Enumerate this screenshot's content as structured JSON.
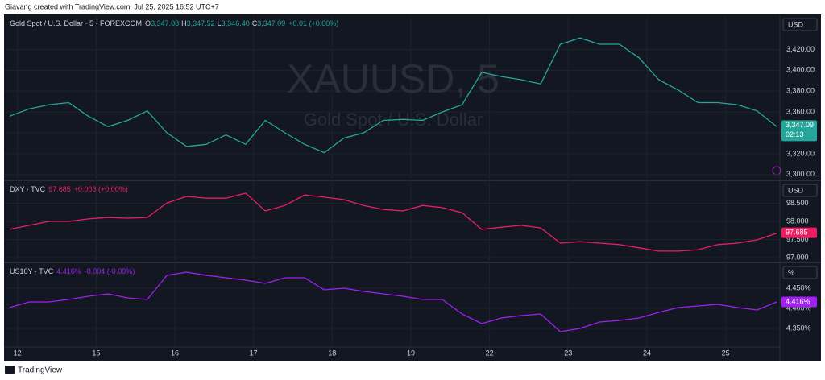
{
  "header": {
    "credit": "Giavang created with TradingView.com, Jul 25, 2025 16:52 UTC+7"
  },
  "footer": {
    "brand": "TradingView"
  },
  "chart_data": [
    {
      "type": "line",
      "unit": "USD",
      "watermark": [
        "XAUUSD, 5",
        "Gold Spot / U.S. Dollar"
      ],
      "ohlc": [
        [
          "O",
          "3,347.08"
        ],
        [
          "H",
          "3,347.52"
        ],
        [
          "L",
          "3,346.40"
        ],
        [
          "C",
          "3,347.09"
        ]
      ],
      "change": "+0.01 (+0.00%)",
      "countdown": "02:13",
      "x": [
        -0.1,
        0.15,
        0.4,
        0.65,
        0.9,
        1.15,
        1.4,
        1.65,
        1.9,
        2.15,
        2.4,
        2.65,
        2.9,
        3.15,
        3.4,
        3.65,
        3.9,
        4.15,
        4.4,
        4.65,
        4.9,
        5.15,
        5.4,
        5.65,
        5.9,
        6.15,
        6.4,
        6.65,
        6.9,
        7.15,
        7.4,
        7.65,
        7.9,
        8.15,
        8.4,
        8.65,
        8.9,
        9.15,
        9.4,
        9.65
      ],
      "series": [
        {
          "name": "Gold Spot / U.S. Dollar · 5 · FOREXCOM",
          "color": "#26a69a",
          "values": [
            3356,
            3363,
            3367,
            3369,
            3356,
            3346,
            3352,
            3361,
            3340,
            3327,
            3329,
            3338,
            3329,
            3352,
            3340,
            3329,
            3321,
            3335,
            3340,
            3352,
            3353,
            3352,
            3360,
            3367,
            3398,
            3394,
            3391,
            3387,
            3425,
            3431,
            3425,
            3425,
            3412,
            3391,
            3381,
            3369,
            3369,
            3367,
            3361,
            3346
          ]
        }
      ],
      "last": {
        "value": 3347.09,
        "label": "3,347.09"
      },
      "xlim": [
        -0.14,
        9.69
      ],
      "ylim": [
        3296,
        3452
      ],
      "yticks": [
        {
          "value": 3300,
          "label": "3,300.00"
        },
        {
          "value": 3320,
          "label": "3,320.00"
        },
        {
          "value": 3340,
          "label": "3,340.00"
        },
        {
          "value": 3360,
          "label": "3,360.00"
        },
        {
          "value": 3380,
          "label": "3,380.00"
        },
        {
          "value": 3400,
          "label": "3,400.00"
        },
        {
          "value": 3420,
          "label": "3,420.00"
        }
      ],
      "grid": true
    },
    {
      "type": "line",
      "unit": "USD",
      "quote": "97.685",
      "change": "+0.003 (+0.00%)",
      "x": [
        -0.1,
        0.15,
        0.4,
        0.65,
        0.9,
        1.15,
        1.4,
        1.65,
        1.9,
        2.15,
        2.4,
        2.65,
        2.9,
        3.15,
        3.4,
        3.65,
        3.9,
        4.15,
        4.4,
        4.65,
        4.9,
        5.15,
        5.4,
        5.65,
        5.9,
        6.15,
        6.4,
        6.65,
        6.9,
        7.15,
        7.4,
        7.65,
        7.9,
        8.15,
        8.4,
        8.65,
        8.9,
        9.15,
        9.4,
        9.65
      ],
      "series": [
        {
          "name": "DXY · TVC",
          "color": "#e91e63",
          "values": [
            97.78,
            97.89,
            98.0,
            98.0,
            98.07,
            98.11,
            98.09,
            98.11,
            98.51,
            98.69,
            98.64,
            98.64,
            98.78,
            98.29,
            98.44,
            98.73,
            98.67,
            98.6,
            98.44,
            98.33,
            98.29,
            98.44,
            98.38,
            98.24,
            97.78,
            97.84,
            97.89,
            97.82,
            97.4,
            97.44,
            97.4,
            97.36,
            97.27,
            97.18,
            97.18,
            97.22,
            97.36,
            97.4,
            97.49,
            97.67
          ]
        }
      ],
      "last": 97.685,
      "xlim": [
        -0.14,
        9.69
      ],
      "ylim": [
        96.91,
        99.09
      ],
      "yticks": [
        {
          "value": 97,
          "label": "97.000"
        },
        {
          "value": 97.5,
          "label": "97.500"
        },
        {
          "value": 98,
          "label": "98.000"
        },
        {
          "value": 98.5,
          "label": "98.500"
        }
      ],
      "grid": true
    },
    {
      "type": "line",
      "unit": "%",
      "quote": "4.416%",
      "change": "-0.004 (-0.09%)",
      "x": [
        -0.1,
        0.15,
        0.4,
        0.65,
        0.9,
        1.15,
        1.4,
        1.65,
        1.9,
        2.15,
        2.4,
        2.65,
        2.9,
        3.15,
        3.4,
        3.65,
        3.9,
        4.15,
        4.4,
        4.65,
        4.9,
        5.15,
        5.4,
        5.65,
        5.9,
        6.15,
        6.4,
        6.65,
        6.9,
        7.15,
        7.4,
        7.65,
        7.9,
        8.15,
        8.4,
        8.65,
        8.9,
        9.15,
        9.4,
        9.65
      ],
      "series": [
        {
          "name": "US10Y · TVC",
          "color": "#a020f0",
          "values": [
            4.402,
            4.416,
            4.416,
            4.422,
            4.43,
            4.436,
            4.426,
            4.422,
            4.482,
            4.49,
            4.482,
            4.476,
            4.47,
            4.462,
            4.476,
            4.476,
            4.446,
            4.45,
            4.442,
            4.436,
            4.43,
            4.422,
            4.422,
            4.386,
            4.362,
            4.376,
            4.382,
            4.386,
            4.342,
            4.35,
            4.366,
            4.37,
            4.376,
            4.39,
            4.402,
            4.406,
            4.41,
            4.402,
            4.396,
            4.416
          ]
        }
      ],
      "last": {
        "value": 4.416,
        "label": "4.416%"
      },
      "xlim": [
        -0.14,
        9.69
      ],
      "ylim": [
        4.306,
        4.51
      ],
      "yticks": [
        {
          "value": 4.35,
          "label": "4.350%"
        },
        {
          "value": 4.4,
          "label": "4.400%"
        },
        {
          "value": 4.45,
          "label": "4.450%"
        }
      ],
      "xticks": [
        {
          "value": 0,
          "label": "12"
        },
        {
          "value": 1,
          "label": "15"
        },
        {
          "value": 2,
          "label": "16"
        },
        {
          "value": 3,
          "label": "17"
        },
        {
          "value": 4,
          "label": "18"
        },
        {
          "value": 5,
          "label": "19"
        },
        {
          "value": 6,
          "label": "22"
        },
        {
          "value": 7,
          "label": "23"
        },
        {
          "value": 8,
          "label": "24"
        },
        {
          "value": 9,
          "label": "25"
        }
      ],
      "grid": true
    }
  ]
}
